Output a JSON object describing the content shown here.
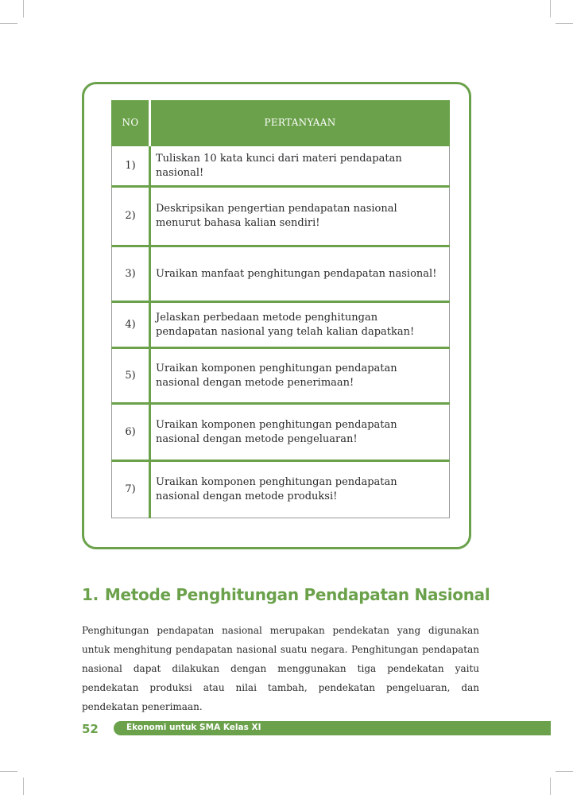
{
  "table": {
    "headers": {
      "no": "NO",
      "question": "PERTANYAAN"
    },
    "rows": [
      {
        "no": "1)",
        "text": "Tuliskan 10  kata kunci dari materi pendapatan nasional!"
      },
      {
        "no": "2)",
        "text": "Deskripsikan pengertian pendapatan nasional menurut bahasa kalian sendiri!"
      },
      {
        "no": "3)",
        "text": "Uraikan manfaat penghitungan pendapatan nasional!"
      },
      {
        "no": "4)",
        "text": "Jelaskan perbedaan metode penghitungan pendapatan nasional yang telah kalian dapatkan!"
      },
      {
        "no": "5)",
        "text": "Uraikan komponen penghitungan pendapatan nasional dengan metode penerimaan!"
      },
      {
        "no": "6)",
        "text": "Uraikan komponen penghitungan pendapatan nasional dengan metode pengeluaran!"
      },
      {
        "no": "7)",
        "text": "Uraikan komponen penghitungan pendapatan nasional dengan metode produksi!"
      }
    ]
  },
  "section": {
    "number": "1.",
    "title": "Metode Penghitungan Pendapatan Nasional",
    "paragraph": "Penghitungan pendapatan nasional merupakan pendekatan yang digunakan untuk menghitung pendapatan nasional suatu negara. Penghitungan pendapatan nasional dapat dilakukan dengan menggunakan tiga pendekatan yaitu pendekatan produksi atau nilai tambah, pendekatan pengeluaran, dan pendekatan penerimaan."
  },
  "footer": {
    "page_number": "52",
    "book_title": "Ekonomi untuk SMA Kelas XI"
  },
  "colors": {
    "accent": "#6aa14a"
  }
}
